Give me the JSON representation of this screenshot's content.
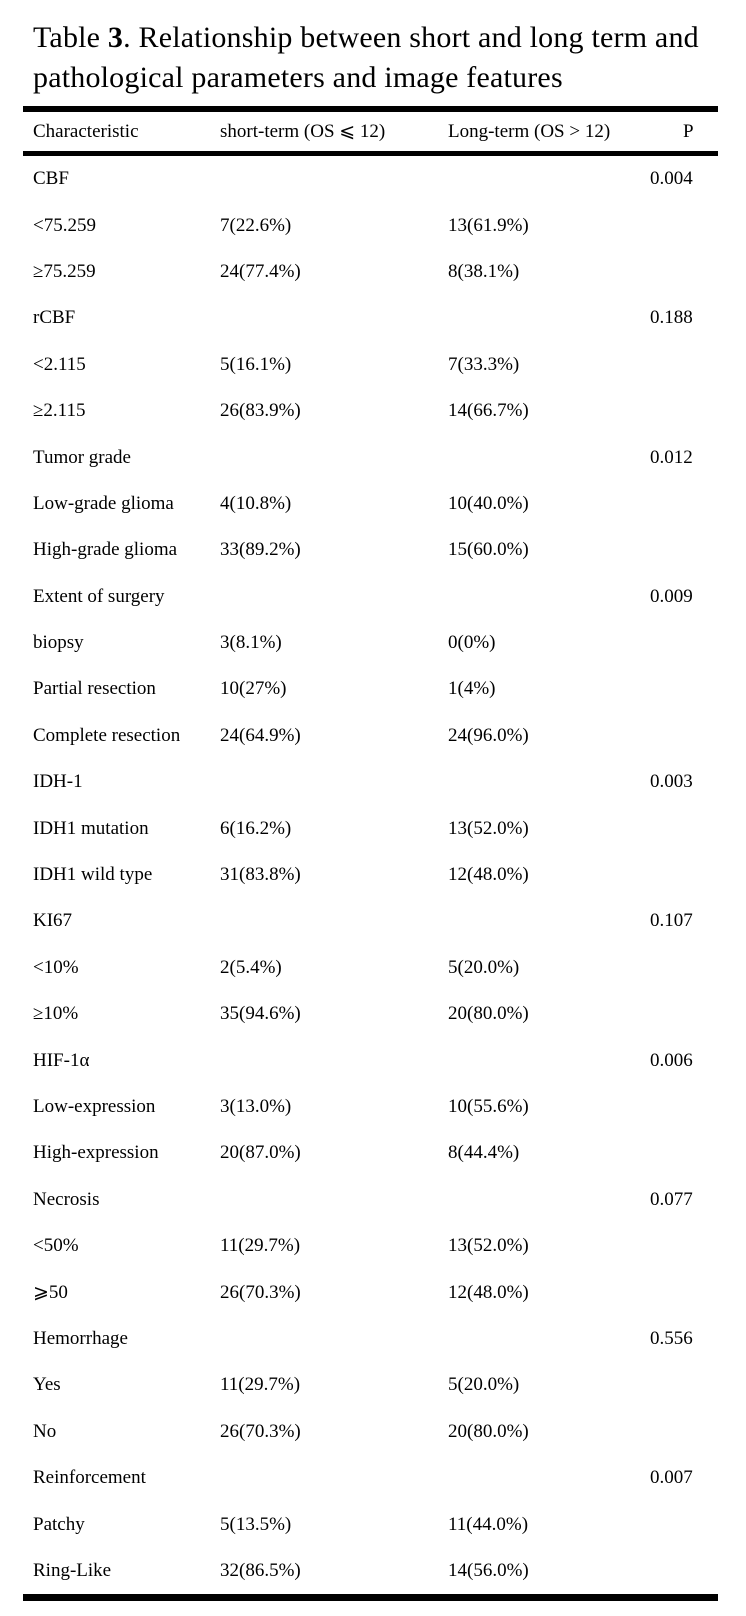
{
  "title": {
    "prefix": "Table ",
    "number": "3",
    "rest": ". Relationship between short and long term and pathological parameters and image features"
  },
  "table": {
    "columns": [
      "Characteristic",
      "short-term (OS ⩽ 12)",
      "Long-term (OS > 12)",
      "P"
    ],
    "rows": [
      {
        "cells": [
          "CBF",
          "",
          "",
          "0.004"
        ]
      },
      {
        "cells": [
          "<75.259",
          "7(22.6%)",
          "13(61.9%)",
          ""
        ]
      },
      {
        "cells": [
          "≥75.259",
          "24(77.4%)",
          "8(38.1%)",
          ""
        ]
      },
      {
        "cells": [
          "rCBF",
          "",
          "",
          "0.188"
        ]
      },
      {
        "cells": [
          "<2.115",
          "5(16.1%)",
          "7(33.3%)",
          ""
        ]
      },
      {
        "cells": [
          "≥2.115",
          "26(83.9%)",
          "14(66.7%)",
          ""
        ]
      },
      {
        "cells": [
          "Tumor grade",
          "",
          "",
          "0.012"
        ]
      },
      {
        "cells": [
          "Low-grade glioma",
          "4(10.8%)",
          "10(40.0%)",
          ""
        ]
      },
      {
        "cells": [
          "High-grade glioma",
          "33(89.2%)",
          "15(60.0%)",
          ""
        ]
      },
      {
        "cells": [
          "Extent of surgery",
          "",
          "",
          "0.009"
        ]
      },
      {
        "cells": [
          "biopsy",
          "3(8.1%)",
          "0(0%)",
          ""
        ]
      },
      {
        "cells": [
          "Partial resection",
          "10(27%)",
          "1(4%)",
          ""
        ]
      },
      {
        "cells": [
          "Complete resection",
          "24(64.9%)",
          "24(96.0%)",
          ""
        ]
      },
      {
        "cells": [
          "IDH-1",
          "",
          "",
          "0.003"
        ]
      },
      {
        "cells": [
          "IDH1 mutation",
          "6(16.2%)",
          "13(52.0%)",
          ""
        ]
      },
      {
        "cells": [
          "IDH1 wild type",
          "31(83.8%)",
          "12(48.0%)",
          ""
        ]
      },
      {
        "cells": [
          "KI67",
          "",
          "",
          "0.107"
        ]
      },
      {
        "cells": [
          "<10%",
          "2(5.4%)",
          "5(20.0%)",
          ""
        ]
      },
      {
        "cells": [
          "≥10%",
          "35(94.6%)",
          "20(80.0%)",
          ""
        ]
      },
      {
        "cells": [
          "HIF-1α",
          "",
          "",
          "0.006"
        ]
      },
      {
        "cells": [
          "Low-expression",
          "3(13.0%)",
          "10(55.6%)",
          ""
        ]
      },
      {
        "cells": [
          "High-expression",
          "20(87.0%)",
          "8(44.4%)",
          ""
        ]
      },
      {
        "cells": [
          "Necrosis",
          "",
          "",
          "0.077"
        ]
      },
      {
        "cells": [
          "<50%",
          "11(29.7%)",
          "13(52.0%)",
          ""
        ]
      },
      {
        "cells": [
          "⩾50",
          "26(70.3%)",
          "12(48.0%)",
          ""
        ]
      },
      {
        "cells": [
          "Hemorrhage",
          "",
          "",
          "0.556"
        ]
      },
      {
        "cells": [
          "Yes",
          "11(29.7%)",
          "5(20.0%)",
          ""
        ]
      },
      {
        "cells": [
          "No",
          "26(70.3%)",
          "20(80.0%)",
          ""
        ]
      },
      {
        "cells": [
          "Reinforcement",
          "",
          "",
          "0.007"
        ]
      },
      {
        "cells": [
          "Patchy",
          "5(13.5%)",
          "11(44.0%)",
          ""
        ]
      },
      {
        "cells": [
          "Ring-Like",
          "32(86.5%)",
          "14(56.0%)",
          ""
        ]
      }
    ]
  },
  "colors": {
    "text": "#000000",
    "background": "#ffffff",
    "rule": "#000000"
  }
}
